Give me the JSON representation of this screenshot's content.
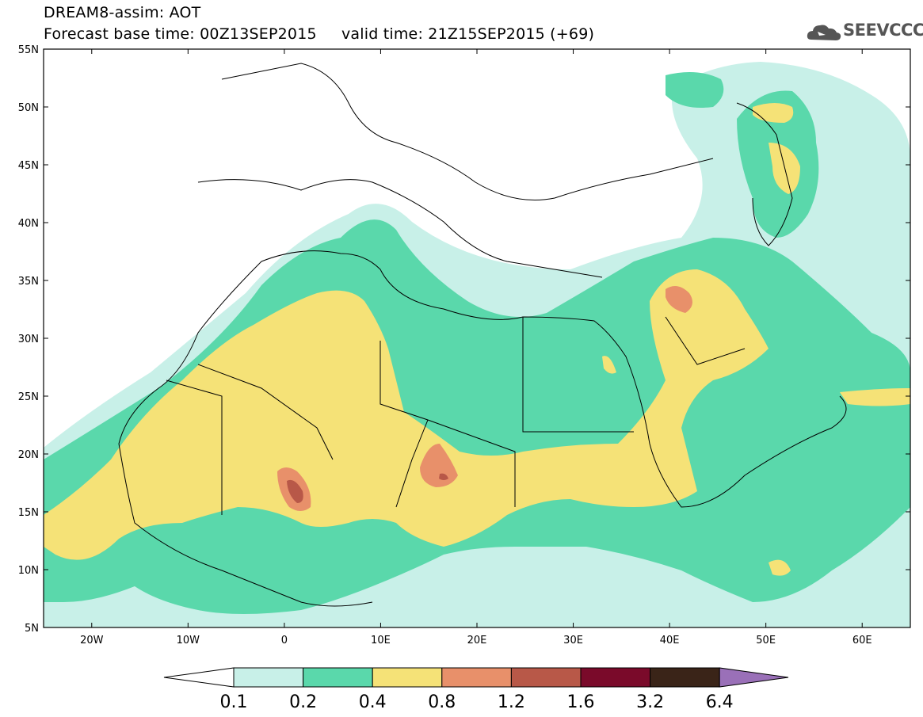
{
  "header": {
    "model_line": "DREAM8-assim: AOT",
    "time_line": "Forecast base time: 00Z13SEP2015     valid time: 21Z15SEP2015 (+69)"
  },
  "logo": {
    "text": "SEEVCCC",
    "icon": "cloud-icon"
  },
  "map": {
    "lon_range": [
      -25,
      65
    ],
    "lat_range": [
      5,
      55
    ],
    "lat_ticks": [
      "55N",
      "50N",
      "45N",
      "40N",
      "35N",
      "30N",
      "25N",
      "20N",
      "15N",
      "10N",
      "5N"
    ],
    "lon_ticks": [
      "20W",
      "10W",
      "0",
      "10E",
      "20E",
      "30E",
      "40E",
      "50E",
      "60E"
    ]
  },
  "colorbar": {
    "labels": [
      "0.1",
      "0.2",
      "0.4",
      "0.8",
      "1.2",
      "1.6",
      "3.2",
      "6.4"
    ],
    "colors": {
      "under": "#ffffff",
      "c1": "#c8f0e8",
      "c2": "#5ad8ab",
      "c3": "#f5e277",
      "c4": "#e8906a",
      "c5": "#b85848",
      "c6": "#7a0a2a",
      "c7": "#3a2418",
      "over": "#9a70b8"
    }
  }
}
